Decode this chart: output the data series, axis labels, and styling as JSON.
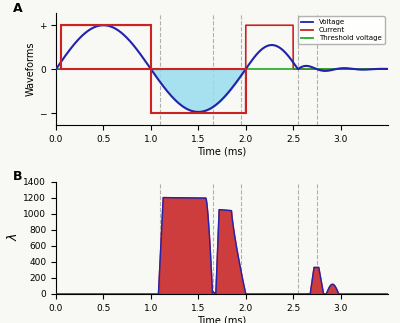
{
  "title_A": "A",
  "title_B": "B",
  "xlabel": "Time (ms)",
  "ylabel_A": "Waveforms",
  "ylabel_B": "λ",
  "xlim": [
    0.0,
    3.5
  ],
  "ylim_B": [
    0,
    1400
  ],
  "yticks_B": [
    0,
    200,
    400,
    600,
    800,
    1000,
    1200,
    1400
  ],
  "xticks": [
    0.0,
    0.5,
    1.0,
    1.5,
    2.0,
    2.5,
    3.0
  ],
  "dashed_lines_x": [
    1.1,
    1.65,
    1.95,
    2.55,
    2.75
  ],
  "voltage_color": "#2222aa",
  "current_color": "#cc2222",
  "threshold_color": "#22aa22",
  "fill_color_cyan": "#99ddee",
  "fill_color_red": "#cc3333",
  "legend_labels": [
    "Voltage",
    "Current",
    "Threshold voltage"
  ],
  "background_color": "#f8f8f5"
}
